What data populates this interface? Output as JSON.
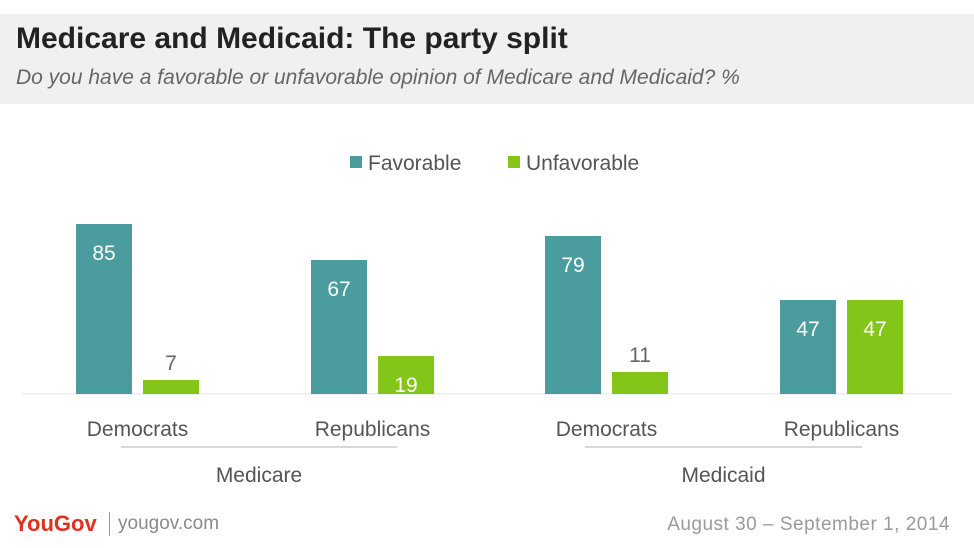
{
  "header": {
    "title": "Medicare and Medicaid: The party split",
    "subtitle": "Do you have a favorable or unfavorable opinion of Medicare and Medicaid? %"
  },
  "footer": {
    "brand": "YouGov",
    "url": "yougov.com",
    "date": "August 30 – September 1, 2014"
  },
  "colors": {
    "favorable": "#4a9c9f",
    "unfavorable": "#84c51a"
  },
  "chart_data": {
    "type": "bar",
    "title": "Medicare and Medicaid: The party split",
    "subtitle": "Do you have a favorable or unfavorable opinion of Medicare and Medicaid? %",
    "legend": {
      "position": "top",
      "entries": [
        "Favorable",
        "Unfavorable"
      ]
    },
    "groups": [
      {
        "name": "Medicare",
        "categories": [
          "Democrats",
          "Republicans"
        ]
      },
      {
        "name": "Medicaid",
        "categories": [
          "Democrats",
          "Republicans"
        ]
      }
    ],
    "categories": [
      "Democrats",
      "Republicans",
      "Democrats",
      "Republicans"
    ],
    "series": [
      {
        "name": "Favorable",
        "values": [
          85,
          67,
          79,
          47
        ]
      },
      {
        "name": "Unfavorable",
        "values": [
          7,
          19,
          11,
          47
        ]
      }
    ],
    "ylim": [
      0,
      100
    ],
    "grid": false
  }
}
